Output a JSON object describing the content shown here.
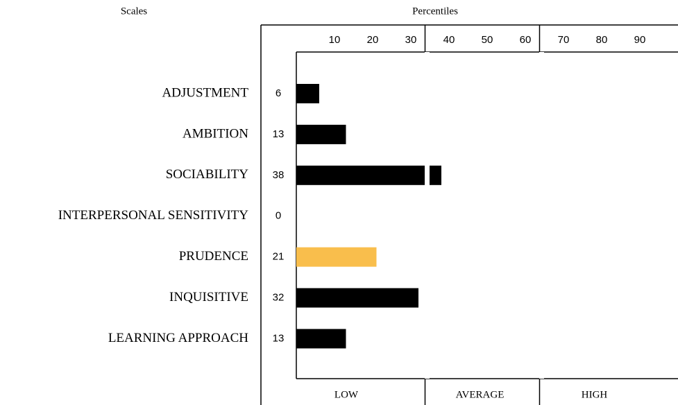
{
  "chart_data": {
    "type": "bar",
    "orientation": "horizontal",
    "scales_header": "Scales",
    "title": "Percentiles",
    "categories": [
      "ADJUSTMENT",
      "AMBITION",
      "SOCIABILITY",
      "INTERPERSONAL SENSITIVITY",
      "PRUDENCE",
      "INQUISITIVE",
      "LEARNING APPROACH"
    ],
    "values": [
      6,
      13,
      38,
      0,
      21,
      32,
      13
    ],
    "colors": [
      "#000000",
      "#000000",
      "#000000",
      "#000000",
      "#f9be4c",
      "#000000",
      "#000000"
    ],
    "xlim": [
      0,
      100
    ],
    "xticks": [
      10,
      20,
      30,
      40,
      50,
      60,
      70,
      80,
      90
    ],
    "bands": [
      {
        "label": "LOW",
        "from": 0,
        "to": 35
      },
      {
        "label": "AVERAGE",
        "from": 35,
        "to": 65
      },
      {
        "label": "HIGH",
        "from": 65,
        "to": 100
      }
    ]
  }
}
